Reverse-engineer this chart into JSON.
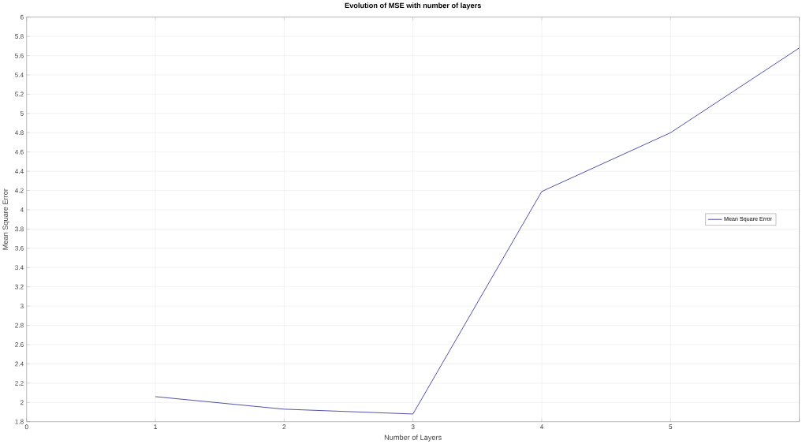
{
  "chart_data": {
    "type": "line",
    "title": "Evolution of MSE with number of layers",
    "xlabel": "Number of Layers",
    "ylabel": "Mean Square Error",
    "x": [
      1,
      2,
      3,
      4,
      5,
      6
    ],
    "series": [
      {
        "name": "Mean Square Error",
        "color": "#2b2b9a",
        "values": [
          2.06,
          1.93,
          1.88,
          4.19,
          4.8,
          5.68
        ]
      }
    ],
    "xlim": [
      0,
      6
    ],
    "xticks": [
      0,
      1,
      2,
      3,
      4,
      5,
      {
        "value": 6,
        "label": null
      }
    ],
    "ylim": [
      1.8,
      6
    ],
    "yticks": [
      1.8,
      2,
      2.2,
      2.4,
      2.6,
      2.8,
      3,
      3.2,
      3.4,
      3.6,
      3.8,
      4,
      4.2,
      4.4,
      4.6,
      4.8,
      5,
      5.2,
      5.4,
      5.6,
      5.8,
      6
    ],
    "grid": true,
    "legend": "right",
    "marker": "none",
    "line_style": "solid"
  }
}
